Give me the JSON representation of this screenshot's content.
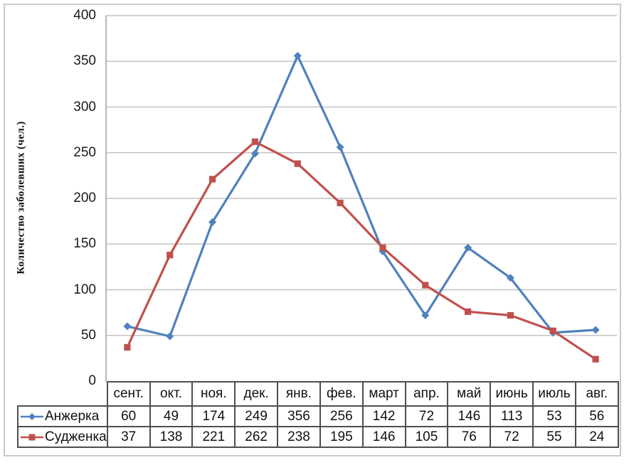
{
  "chart_data": {
    "type": "line",
    "title": "",
    "xlabel": "",
    "ylabel": "Количество заболевших (чел.)",
    "categories": [
      "сент.",
      "окт.",
      "ноя.",
      "дек.",
      "янв.",
      "фев.",
      "март",
      "апр.",
      "май",
      "июнь",
      "июль",
      "авг."
    ],
    "series": [
      {
        "name": "Анжерка",
        "values": [
          60,
          49,
          174,
          249,
          356,
          256,
          142,
          72,
          146,
          113,
          53,
          56
        ],
        "color": "#4F81BD",
        "marker": "diamond"
      },
      {
        "name": "Судженка",
        "values": [
          37,
          138,
          221,
          262,
          238,
          195,
          146,
          105,
          76,
          72,
          55,
          24
        ],
        "color": "#C0504D",
        "marker": "square"
      }
    ],
    "ylim": [
      0,
      400
    ],
    "ytick_step": 50,
    "y_ticks": [
      0,
      50,
      100,
      150,
      200,
      250,
      300,
      350,
      400
    ],
    "grid": "horizontal",
    "legend_position": "table-left"
  },
  "colors": {
    "gridline": "#c4c4c4",
    "axis_line": "#a6a6a6",
    "table_border": "#4f4f4f",
    "frame_border": "#c9c9c9",
    "text": "#1a1a1a"
  }
}
